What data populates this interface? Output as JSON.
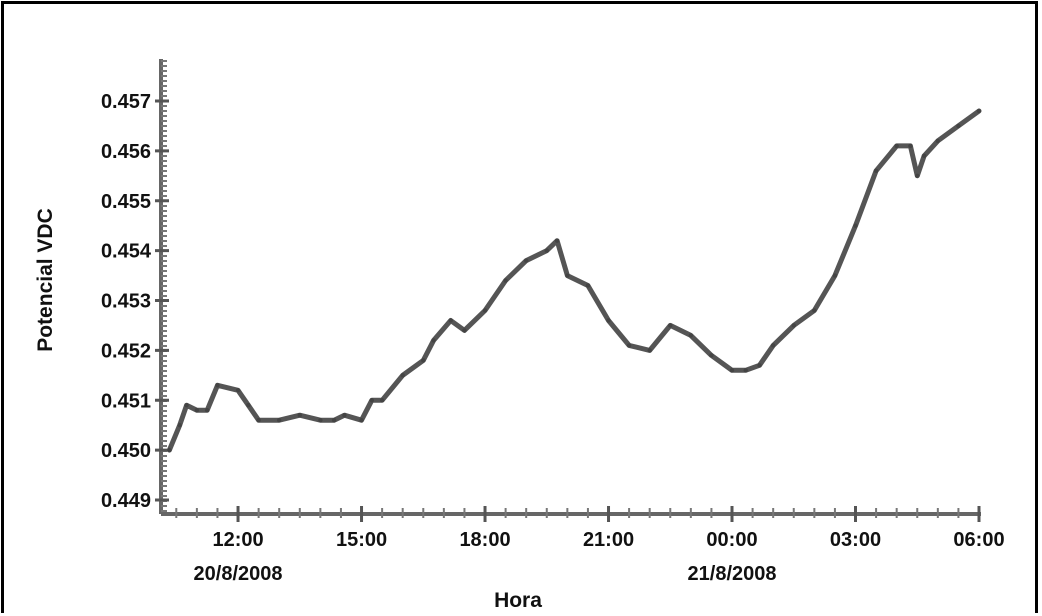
{
  "chart_data": {
    "type": "line",
    "title": "",
    "xlabel": "Hora",
    "ylabel": "Potencial VDC",
    "ylim": [
      0.449,
      0.457
    ],
    "y_ticks": [
      "0.449",
      "0.450",
      "0.451",
      "0.452",
      "0.453",
      "0.454",
      "0.455",
      "0.456",
      "0.457"
    ],
    "xlim": [
      "2008-08-20 10:15",
      "2008-08-21 06:00"
    ],
    "x_ticks": [
      {
        "time": "2008-08-20 12:00",
        "label": "12:00"
      },
      {
        "time": "2008-08-20 15:00",
        "label": "15:00"
      },
      {
        "time": "2008-08-20 18:00",
        "label": "18:00"
      },
      {
        "time": "2008-08-20 21:00",
        "label": "21:00"
      },
      {
        "time": "2008-08-21 00:00",
        "label": "00:00"
      },
      {
        "time": "2008-08-21 03:00",
        "label": "03:00"
      },
      {
        "time": "2008-08-21 06:00",
        "label": "06:00"
      }
    ],
    "date_labels": [
      {
        "time": "2008-08-20 12:00",
        "label": "20/8/2008"
      },
      {
        "time": "2008-08-21 00:00",
        "label": "21/8/2008"
      }
    ],
    "grid": false,
    "legend": "none",
    "line_color": "#555555",
    "series": [
      {
        "x": [
          "2008-08-20 10:20",
          "2008-08-20 10:35",
          "2008-08-20 10:45",
          "2008-08-20 11:00",
          "2008-08-20 11:15",
          "2008-08-20 11:30",
          "2008-08-20 12:00",
          "2008-08-20 12:15",
          "2008-08-20 12:30",
          "2008-08-20 13:00",
          "2008-08-20 13:30",
          "2008-08-20 14:00",
          "2008-08-20 14:20",
          "2008-08-20 14:35",
          "2008-08-20 15:00",
          "2008-08-20 15:15",
          "2008-08-20 15:30",
          "2008-08-20 16:00",
          "2008-08-20 16:30",
          "2008-08-20 16:45",
          "2008-08-20 17:10",
          "2008-08-20 17:30",
          "2008-08-20 18:00",
          "2008-08-20 18:30",
          "2008-08-20 19:00",
          "2008-08-20 19:30",
          "2008-08-20 19:45",
          "2008-08-20 20:00",
          "2008-08-20 20:30",
          "2008-08-20 21:00",
          "2008-08-20 21:30",
          "2008-08-20 22:00",
          "2008-08-20 22:30",
          "2008-08-20 23:00",
          "2008-08-20 23:30",
          "2008-08-21 00:00",
          "2008-08-21 00:20",
          "2008-08-21 00:40",
          "2008-08-21 01:00",
          "2008-08-21 01:30",
          "2008-08-21 02:00",
          "2008-08-21 02:30",
          "2008-08-21 03:00",
          "2008-08-21 03:30",
          "2008-08-21 04:00",
          "2008-08-21 04:20",
          "2008-08-21 04:30",
          "2008-08-21 04:40",
          "2008-08-21 05:00",
          "2008-08-21 05:30",
          "2008-08-21 06:00"
        ],
        "y": [
          0.45,
          0.4505,
          0.4509,
          0.4508,
          0.4508,
          0.4513,
          0.4512,
          0.4509,
          0.4506,
          0.4506,
          0.4507,
          0.4506,
          0.4506,
          0.4507,
          0.4506,
          0.451,
          0.451,
          0.4515,
          0.4518,
          0.4522,
          0.4526,
          0.4524,
          0.4528,
          0.4534,
          0.4538,
          0.454,
          0.4542,
          0.4535,
          0.4533,
          0.4526,
          0.4521,
          0.452,
          0.4525,
          0.4523,
          0.4519,
          0.4516,
          0.4516,
          0.4517,
          0.4521,
          0.4525,
          0.4528,
          0.4535,
          0.4545,
          0.4556,
          0.4561,
          0.4561,
          0.4555,
          0.4559,
          0.4562,
          0.4565,
          0.4568
        ]
      }
    ]
  }
}
